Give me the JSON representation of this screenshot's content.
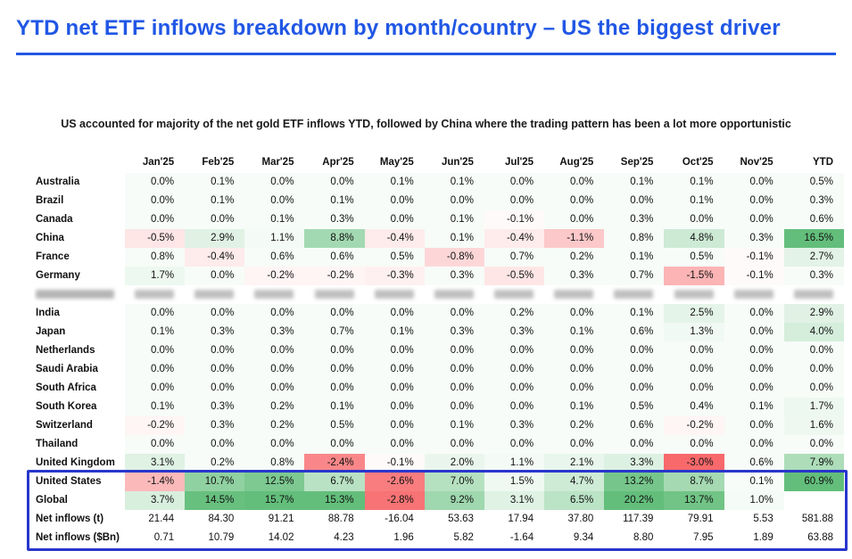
{
  "title": "YTD net ETF inflows breakdown by month/country – US the biggest driver",
  "subtitle": "US accounted for majority of the net gold ETF inflows YTD, followed by China where the trading pattern has been a lot more opportunistic",
  "colors": {
    "accent_blue": "#2157e5",
    "highlight_box_blue": "#2936cc",
    "heatmap_positive_full": "#63BE7B",
    "heatmap_negative_full": "#F8696B"
  },
  "heatmap_scale": {
    "positive_full_at": 15,
    "negative_full_at": 3,
    "min_positive_tint": 0.05
  },
  "chart_data": {
    "type": "heatmap",
    "columns": [
      "Jan'25",
      "Feb'25",
      "Mar'25",
      "Apr'25",
      "May'25",
      "Jun'25",
      "Jul'25",
      "Aug'25",
      "Sep'25",
      "Oct'25",
      "Nov'25",
      "YTD"
    ],
    "rows": [
      {
        "label": "Australia",
        "colored": true,
        "values": [
          "0.0%",
          "0.1%",
          "0.0%",
          "0.0%",
          "0.1%",
          "0.1%",
          "0.0%",
          "0.0%",
          "0.1%",
          "0.1%",
          "0.0%",
          "0.5%"
        ]
      },
      {
        "label": "Brazil",
        "colored": true,
        "values": [
          "0.0%",
          "0.1%",
          "0.0%",
          "0.1%",
          "0.0%",
          "0.0%",
          "0.0%",
          "0.0%",
          "0.0%",
          "0.1%",
          "0.0%",
          "0.3%"
        ]
      },
      {
        "label": "Canada",
        "colored": true,
        "values": [
          "0.0%",
          "0.0%",
          "0.1%",
          "0.3%",
          "0.0%",
          "0.1%",
          "-0.1%",
          "0.0%",
          "0.3%",
          "0.0%",
          "0.0%",
          "0.6%"
        ]
      },
      {
        "label": "China",
        "colored": true,
        "values": [
          "-0.5%",
          "2.9%",
          "1.1%",
          "8.8%",
          "-0.4%",
          "0.1%",
          "-0.4%",
          "-1.1%",
          "0.8%",
          "4.8%",
          "0.3%",
          "16.5%"
        ]
      },
      {
        "label": "France",
        "colored": true,
        "values": [
          "0.8%",
          "-0.4%",
          "0.6%",
          "0.6%",
          "0.5%",
          "-0.8%",
          "0.7%",
          "0.2%",
          "0.1%",
          "0.5%",
          "-0.1%",
          "2.7%"
        ]
      },
      {
        "label": "Germany",
        "colored": true,
        "values": [
          "1.7%",
          "0.0%",
          "-0.2%",
          "-0.2%",
          "-0.3%",
          "0.3%",
          "-0.5%",
          "0.3%",
          "0.7%",
          "-1.5%",
          "-0.1%",
          "0.3%"
        ]
      },
      {
        "label": "",
        "redacted": true,
        "values": [
          "",
          "",
          "",
          "",
          "",
          "",
          "",
          "",
          "",
          "",
          "",
          ""
        ]
      },
      {
        "label": "India",
        "colored": true,
        "values": [
          "0.0%",
          "0.0%",
          "0.0%",
          "0.0%",
          "0.0%",
          "0.0%",
          "0.2%",
          "0.0%",
          "0.1%",
          "2.5%",
          "0.0%",
          "2.9%"
        ]
      },
      {
        "label": "Japan",
        "colored": true,
        "values": [
          "0.1%",
          "0.3%",
          "0.3%",
          "0.7%",
          "0.1%",
          "0.3%",
          "0.3%",
          "0.1%",
          "0.6%",
          "1.3%",
          "0.0%",
          "4.0%"
        ]
      },
      {
        "label": "Netherlands",
        "colored": true,
        "values": [
          "0.0%",
          "0.0%",
          "0.0%",
          "0.0%",
          "0.0%",
          "0.0%",
          "0.0%",
          "0.0%",
          "0.0%",
          "0.0%",
          "0.0%",
          "0.0%"
        ]
      },
      {
        "label": "Saudi Arabia",
        "colored": true,
        "values": [
          "0.0%",
          "0.0%",
          "0.0%",
          "0.0%",
          "0.0%",
          "0.0%",
          "0.0%",
          "0.0%",
          "0.0%",
          "0.0%",
          "0.0%",
          "0.0%"
        ]
      },
      {
        "label": "South Africa",
        "colored": true,
        "values": [
          "0.0%",
          "0.0%",
          "0.0%",
          "0.0%",
          "0.0%",
          "0.0%",
          "0.0%",
          "0.0%",
          "0.0%",
          "0.0%",
          "0.0%",
          "0.0%"
        ]
      },
      {
        "label": "South Korea",
        "colored": true,
        "values": [
          "0.1%",
          "0.3%",
          "0.2%",
          "0.1%",
          "0.0%",
          "0.0%",
          "0.0%",
          "0.1%",
          "0.5%",
          "0.4%",
          "0.1%",
          "1.7%"
        ]
      },
      {
        "label": "Switzerland",
        "colored": true,
        "values": [
          "-0.2%",
          "0.3%",
          "0.2%",
          "0.5%",
          "0.0%",
          "0.1%",
          "0.3%",
          "0.2%",
          "0.6%",
          "-0.2%",
          "0.0%",
          "1.6%"
        ]
      },
      {
        "label": "Thailand",
        "colored": true,
        "values": [
          "0.0%",
          "0.0%",
          "0.0%",
          "0.0%",
          "0.0%",
          "0.0%",
          "0.0%",
          "0.0%",
          "0.0%",
          "0.0%",
          "0.0%",
          "0.0%"
        ]
      },
      {
        "label": "United Kingdom",
        "colored": true,
        "values": [
          "3.1%",
          "0.2%",
          "0.8%",
          "-2.4%",
          "-0.1%",
          "2.0%",
          "1.1%",
          "2.1%",
          "3.3%",
          "-3.0%",
          "0.6%",
          "7.9%"
        ]
      },
      {
        "label": "United States",
        "colored": true,
        "boxed": true,
        "values": [
          "-1.4%",
          "10.7%",
          "12.5%",
          "6.7%",
          "-2.6%",
          "7.0%",
          "1.5%",
          "4.7%",
          "13.2%",
          "8.7%",
          "0.1%",
          "60.9%"
        ]
      },
      {
        "label": "Global",
        "colored": true,
        "boxed": true,
        "values": [
          "3.7%",
          "14.5%",
          "15.7%",
          "15.3%",
          "-2.8%",
          "9.2%",
          "3.1%",
          "6.5%",
          "20.2%",
          "13.7%",
          "1.0%",
          ""
        ]
      },
      {
        "label": "Net inflows (t)",
        "colored": false,
        "boxed": true,
        "values": [
          "21.44",
          "84.30",
          "91.21",
          "88.78",
          "-16.04",
          "53.63",
          "17.94",
          "37.80",
          "117.39",
          "79.91",
          "5.53",
          "581.88"
        ]
      },
      {
        "label": "Net inflows ($Bn)",
        "colored": false,
        "boxed": true,
        "values": [
          "0.71",
          "10.79",
          "14.02",
          "4.23",
          "1.96",
          "5.82",
          "-1.64",
          "9.34",
          "8.80",
          "7.95",
          "1.89",
          "63.88"
        ]
      }
    ]
  }
}
